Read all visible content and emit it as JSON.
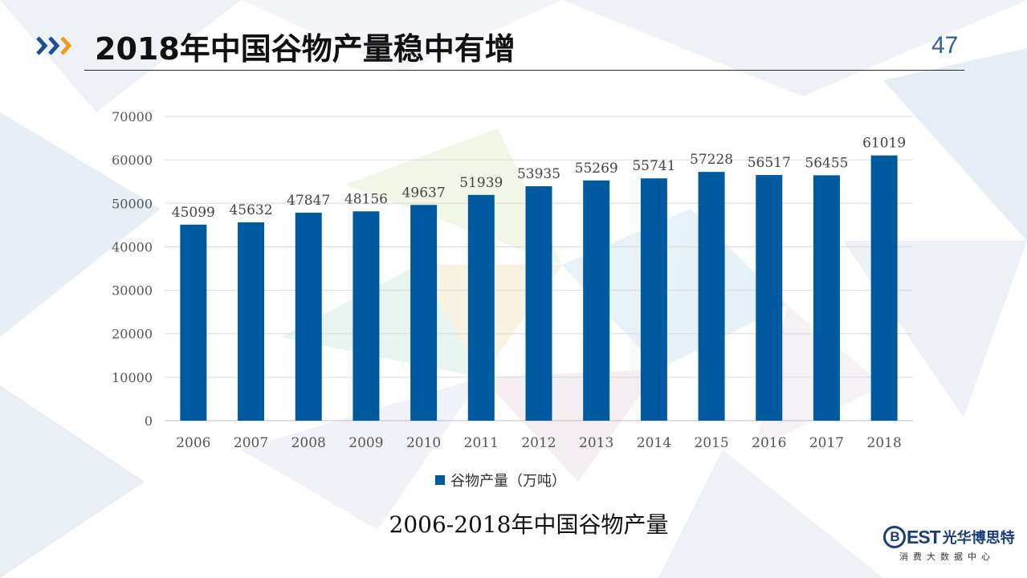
{
  "header": {
    "title": "2018年中国谷物产量稳中有增",
    "page_number": "47"
  },
  "chart_data": {
    "type": "bar",
    "categories": [
      "2006",
      "2007",
      "2008",
      "2009",
      "2010",
      "2011",
      "2012",
      "2013",
      "2014",
      "2015",
      "2016",
      "2017",
      "2018"
    ],
    "series": [
      {
        "name": "谷物产量（万吨）",
        "values": [
          45099,
          45632,
          47847,
          48156,
          49637,
          51939,
          53935,
          55269,
          55741,
          57228,
          56517,
          56455,
          61019
        ]
      }
    ],
    "ylim": [
      0,
      70000
    ],
    "yticks": [
      0,
      10000,
      20000,
      30000,
      40000,
      50000,
      60000,
      70000
    ],
    "grid": true,
    "data_labels": true,
    "legend_position": "bottom-center",
    "caption": "2006-2018年中国谷物产量",
    "bar_color": "#005aa0"
  },
  "footer": {
    "logo_mark": "EST",
    "logo_b": "B",
    "logo_cn": "光华博思特",
    "logo_sub": "消费大数据中心"
  }
}
